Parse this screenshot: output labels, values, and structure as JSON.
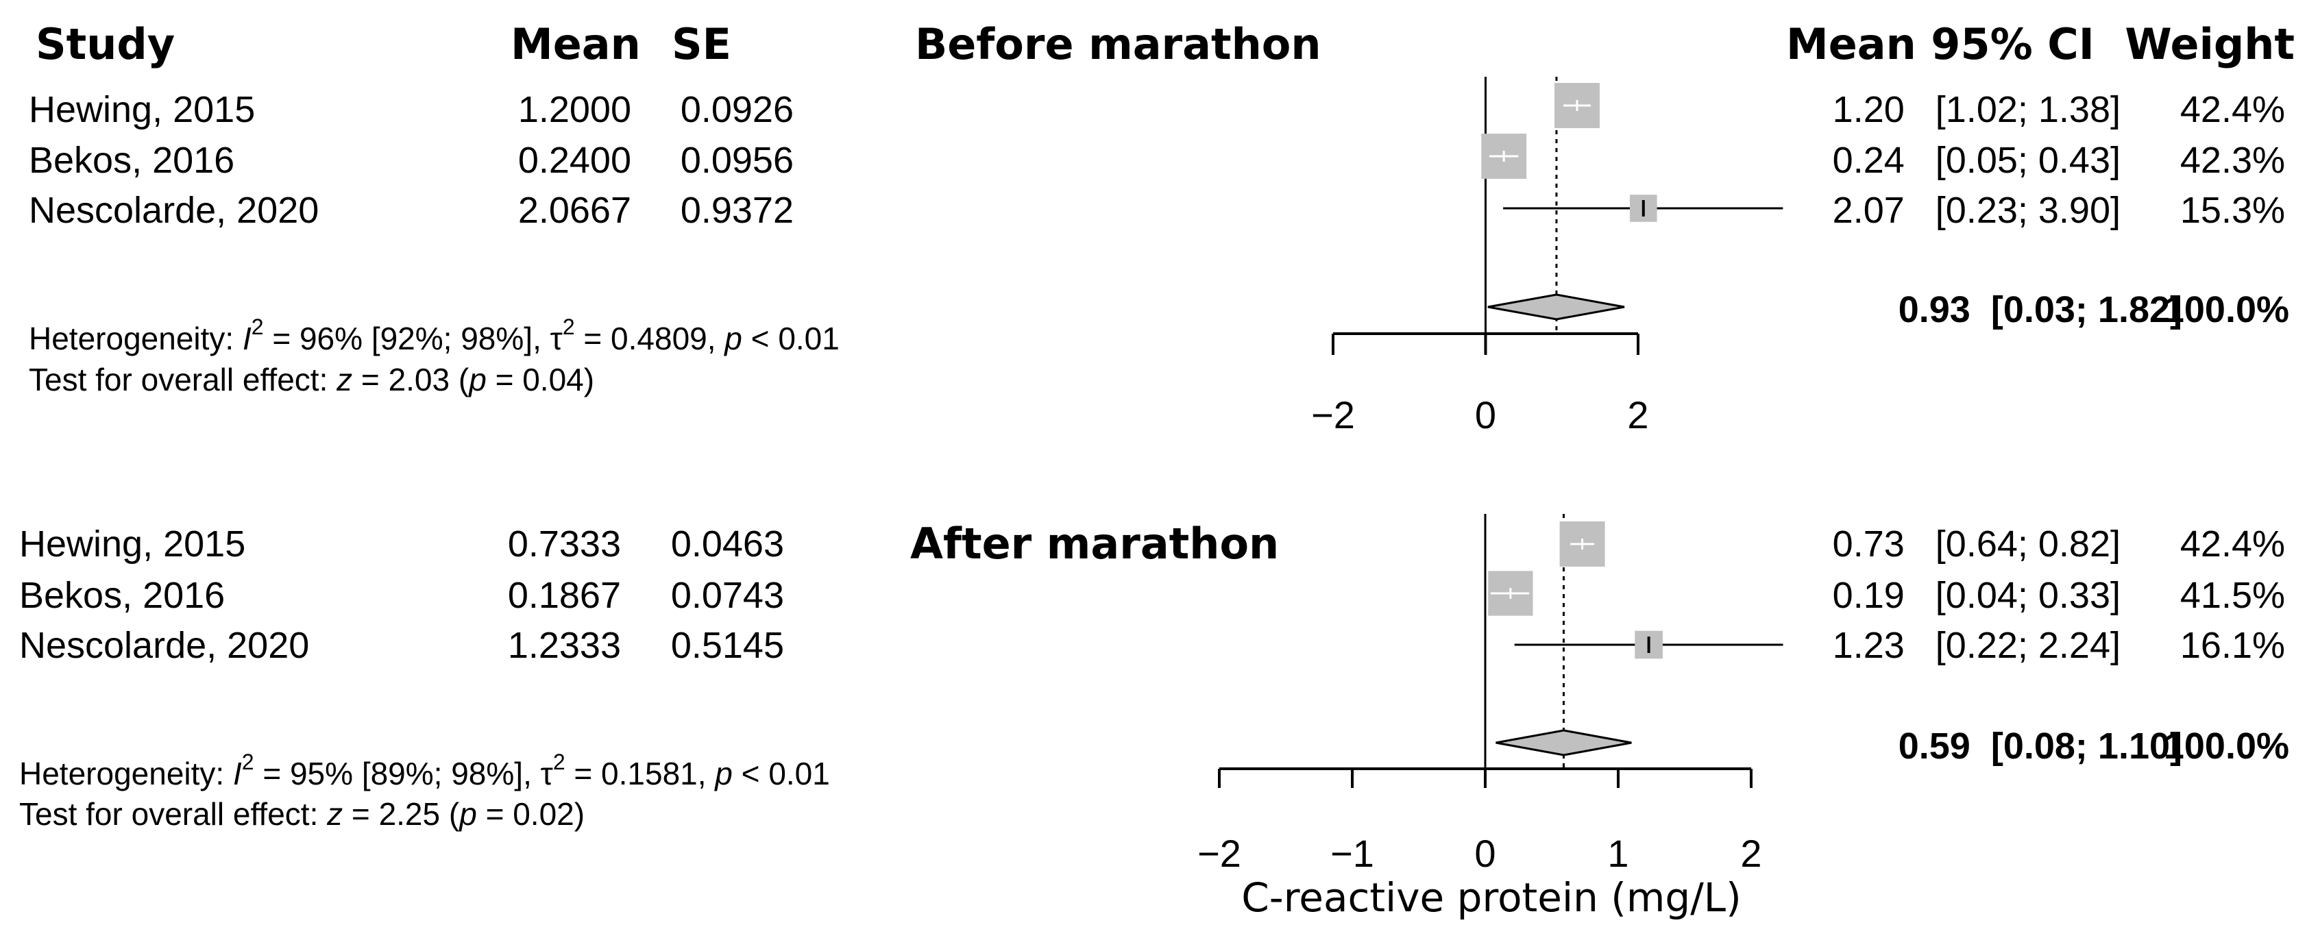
{
  "chart_data": {
    "type": "forest",
    "headers": {
      "study": "Study",
      "mean": "Mean",
      "se": "SE",
      "mean_ci": "Mean 95% CI",
      "weight": "Weight"
    },
    "xlabel": "C-reactive protein (mg/L)",
    "null_line": 0,
    "panels": [
      {
        "title": "Before marathon",
        "xlim": [
          -2,
          2
        ],
        "ticks": [
          -2,
          0,
          2
        ],
        "tick_labels": [
          "−2",
          "0",
          "2"
        ],
        "studies": [
          {
            "name": "Hewing, 2015",
            "mean_text": "1.2000",
            "se_text": "0.0926",
            "mean": 1.2,
            "lower": 1.02,
            "upper": 1.38,
            "ci_text": "1.20   [1.02; 1.38]",
            "weight_text": "42.4%",
            "weight": 42.4
          },
          {
            "name": "Bekos, 2016",
            "mean_text": "0.2400",
            "se_text": "0.0956",
            "mean": 0.24,
            "lower": 0.05,
            "upper": 0.43,
            "ci_text": "0.24   [0.05; 0.43]",
            "weight_text": "42.3%",
            "weight": 42.3
          },
          {
            "name": "Nescolarde, 2020",
            "mean_text": "2.0667",
            "se_text": "0.9372",
            "mean": 2.07,
            "lower": 0.23,
            "upper": 3.9,
            "ci_text": "2.07   [0.23; 3.90]",
            "weight_text": "15.3%",
            "weight": 15.3
          }
        ],
        "pooled": {
          "mean": 0.93,
          "lower": 0.03,
          "upper": 1.82,
          "ci_text": "0.93  [0.03; 1.82]",
          "weight_text": "100.0%"
        },
        "heterogeneity_prefix": "Heterogeneity: ",
        "heterogeneity_i": "I",
        "heterogeneity_mid": " = 96% [92%; 98%], ",
        "heterogeneity_tau": "τ",
        "heterogeneity_tail": " = 0.4809, ",
        "heterogeneity_p": "p",
        "heterogeneity_pval": " < 0.01",
        "overall_prefix": "Test for overall effect: ",
        "overall_z": "z",
        "overall_mid": " = 2.03 (",
        "overall_p": "p",
        "overall_tail": " = 0.04)"
      },
      {
        "title": "After marathon",
        "xlim": [
          -2,
          2
        ],
        "ticks": [
          -2,
          -1,
          0,
          1,
          2
        ],
        "tick_labels": [
          "−2",
          "−1",
          "0",
          "1",
          "2"
        ],
        "studies": [
          {
            "name": "Hewing, 2015",
            "mean_text": "0.7333",
            "se_text": "0.0463",
            "mean": 0.73,
            "lower": 0.64,
            "upper": 0.82,
            "ci_text": "0.73   [0.64; 0.82]",
            "weight_text": "42.4%",
            "weight": 42.4
          },
          {
            "name": "Bekos, 2016",
            "mean_text": "0.1867",
            "se_text": "0.0743",
            "mean": 0.19,
            "lower": 0.04,
            "upper": 0.33,
            "ci_text": "0.19   [0.04; 0.33]",
            "weight_text": "41.5%",
            "weight": 41.5
          },
          {
            "name": "Nescolarde, 2020",
            "mean_text": "1.2333",
            "se_text": "0.5145",
            "mean": 1.23,
            "lower": 0.22,
            "upper": 2.24,
            "ci_text": "1.23   [0.22; 2.24]",
            "weight_text": "16.1%",
            "weight": 16.1
          }
        ],
        "pooled": {
          "mean": 0.59,
          "lower": 0.08,
          "upper": 1.1,
          "ci_text": "0.59  [0.08; 1.10]",
          "weight_text": "100.0%"
        },
        "heterogeneity_prefix": "Heterogeneity: ",
        "heterogeneity_i": "I",
        "heterogeneity_mid": " = 95% [89%; 98%], ",
        "heterogeneity_tau": "τ",
        "heterogeneity_tail": " = 0.1581, ",
        "heterogeneity_p": "p",
        "heterogeneity_pval": " < 0.01",
        "overall_prefix": "Test for overall effect: ",
        "overall_z": "z",
        "overall_mid": " = 2.25 (",
        "overall_p": "p",
        "overall_tail": " = 0.02)"
      }
    ]
  },
  "superscript_two": "2",
  "colors": {
    "box": "#c0c0c0",
    "diamond": "#c0c0c0",
    "line": "#000000",
    "whisker_inside": "#ffffff"
  }
}
